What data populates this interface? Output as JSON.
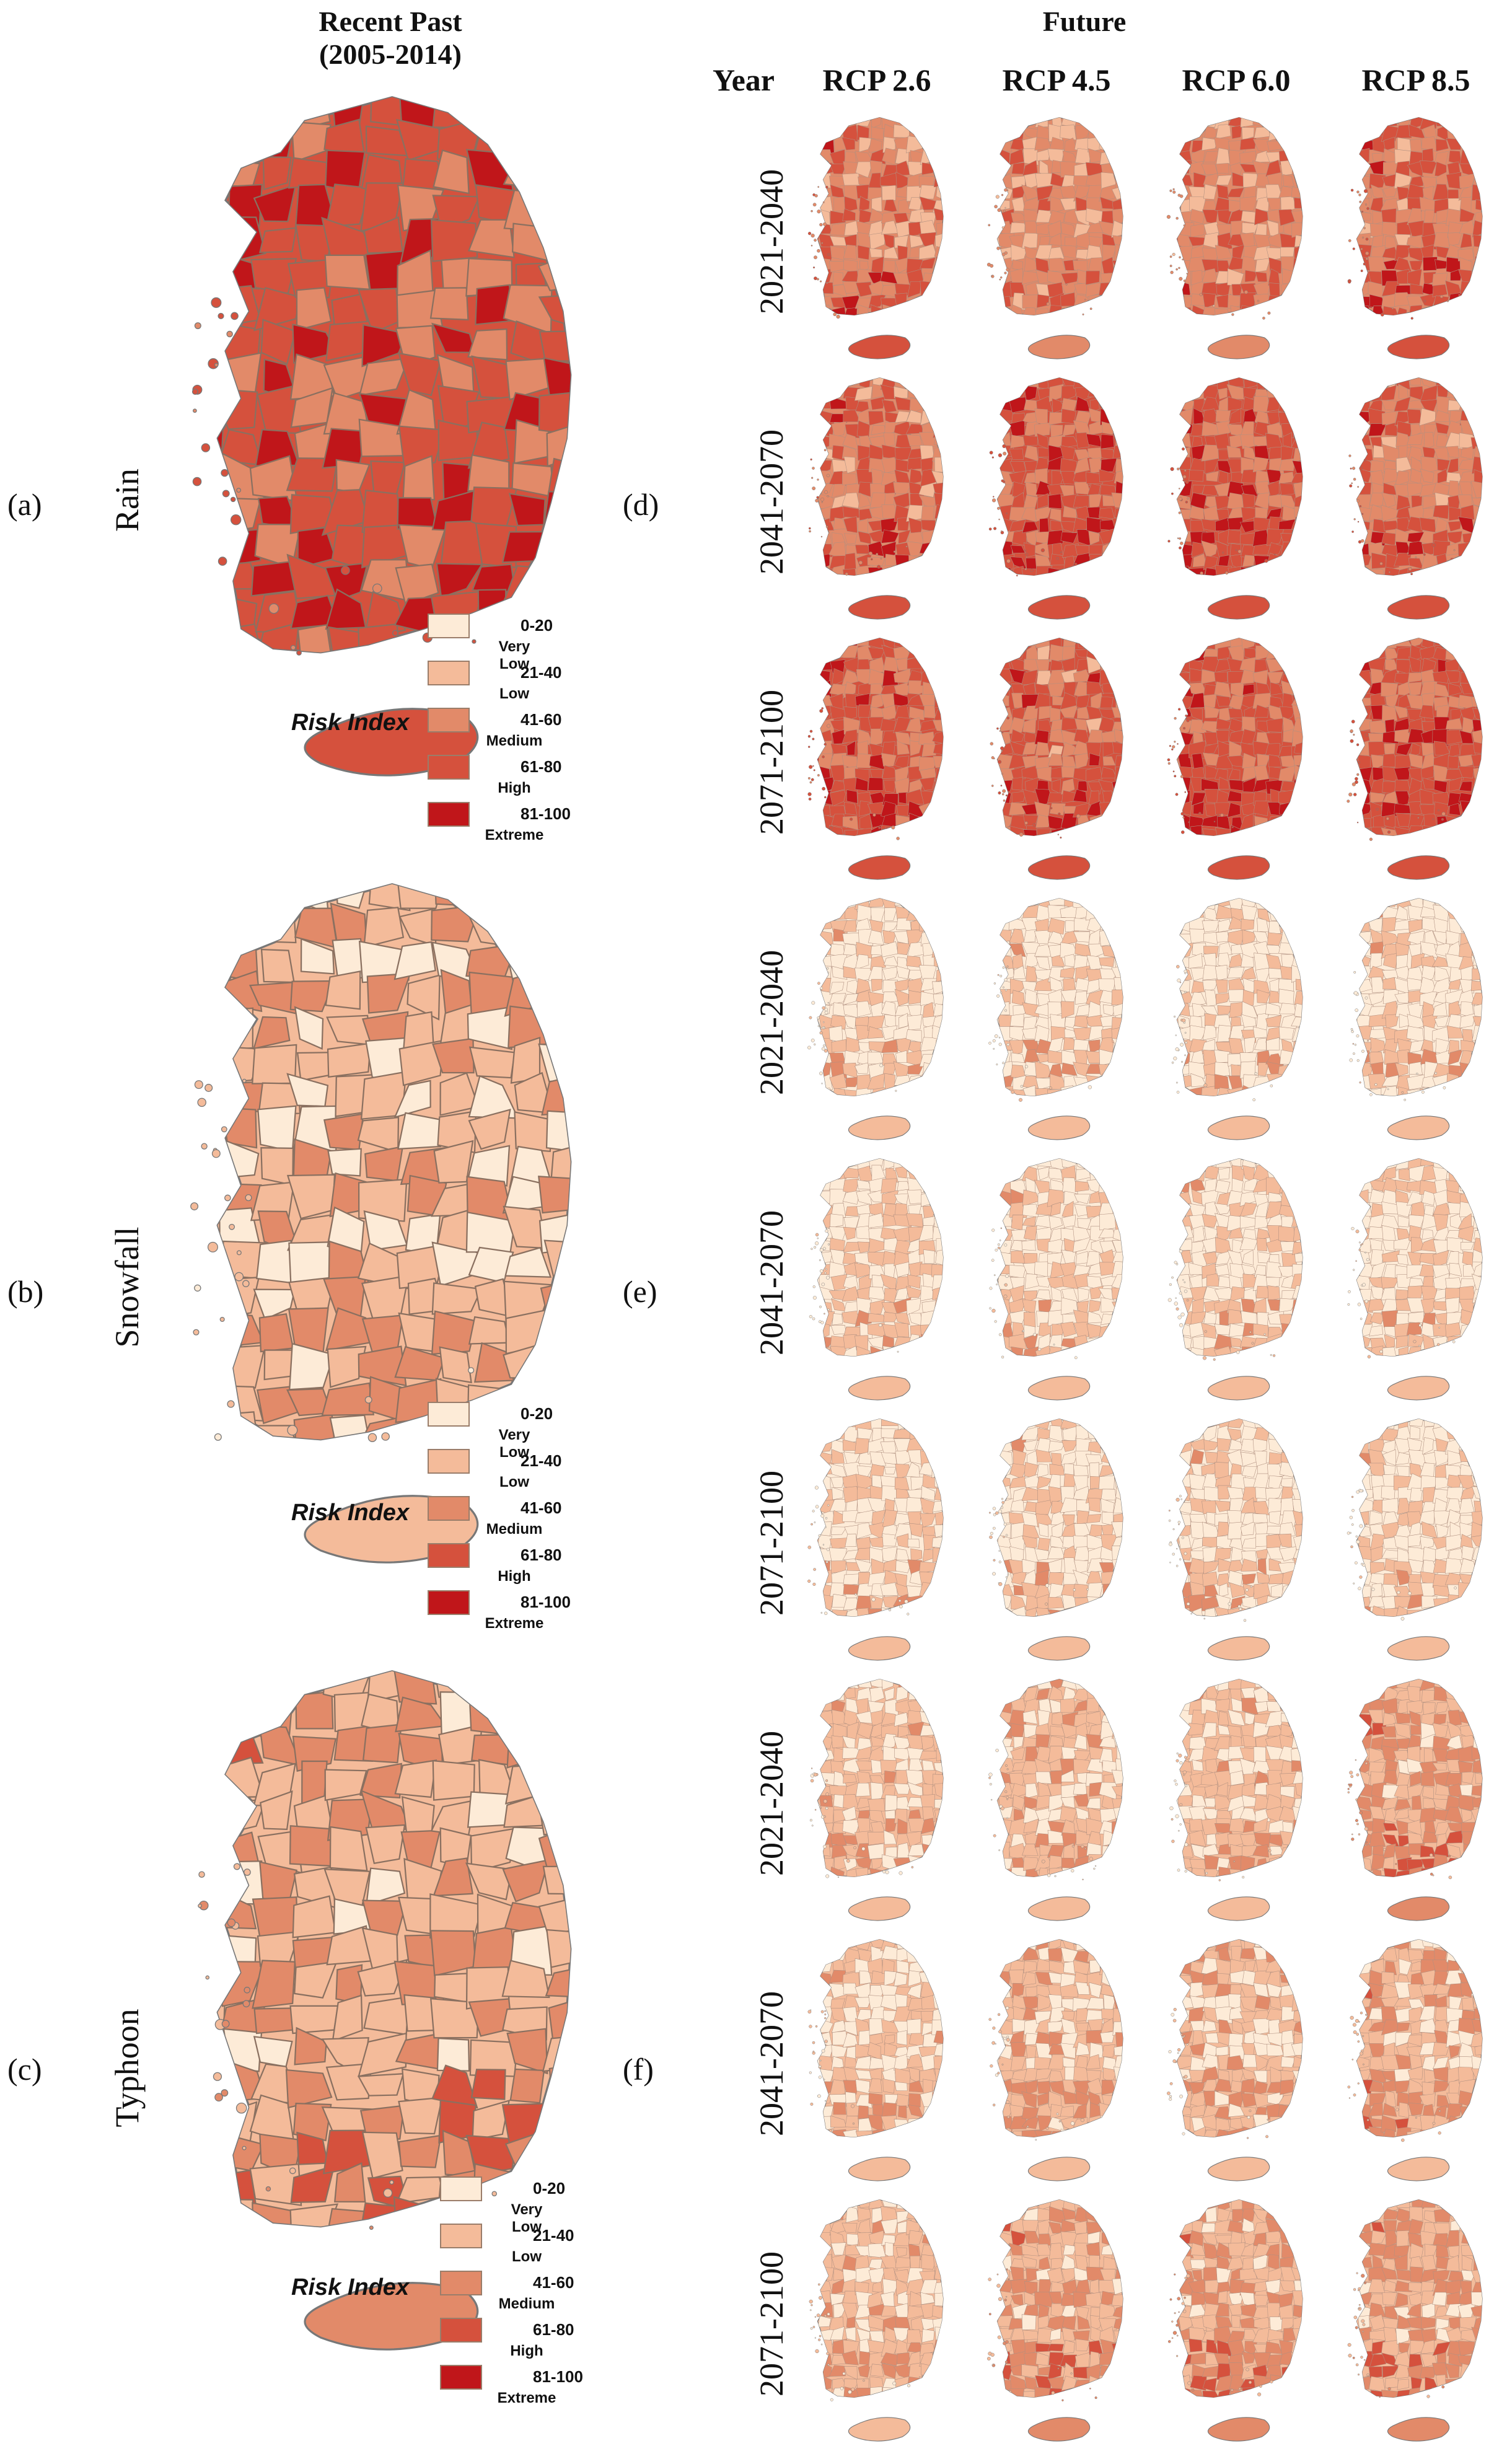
{
  "header": {
    "recent_past_line1": "Recent Past",
    "recent_past_line2": "(2005-2014)",
    "future": "Future",
    "year": "Year",
    "scenarios": [
      "RCP 2.6",
      "RCP 4.5",
      "RCP 6.0",
      "RCP 8.5"
    ]
  },
  "panels": [
    {
      "letter": "(a)",
      "hazard": "Rain",
      "recent_level": 2.6
    },
    {
      "letter": "(b)",
      "hazard": "Snowfall",
      "recent_level": 0.9
    },
    {
      "letter": "(c)",
      "hazard": "Typhoon",
      "recent_level": 1.4
    }
  ],
  "future_panels": [
    {
      "letter": "(d)",
      "periods": [
        "2021-2040",
        "2041-2070",
        "2071-2100"
      ],
      "levels": [
        [
          2.2,
          1.7,
          1.9,
          2.4
        ],
        [
          2.3,
          2.6,
          2.6,
          2.4
        ],
        [
          2.6,
          2.5,
          2.6,
          2.7
        ]
      ]
    },
    {
      "letter": "(e)",
      "periods": [
        "2021-2040",
        "2041-2070",
        "2071-2100"
      ],
      "levels": [
        [
          0.2,
          0.2,
          0.2,
          0.2
        ],
        [
          0.2,
          0.2,
          0.2,
          0.2
        ],
        [
          0.2,
          0.2,
          0.2,
          0.2
        ]
      ]
    },
    {
      "letter": "(f)",
      "periods": [
        "2021-2040",
        "2041-2070",
        "2071-2100"
      ],
      "levels": [
        [
          0.6,
          0.5,
          0.5,
          1.4
        ],
        [
          0.5,
          0.8,
          0.7,
          1.0
        ],
        [
          0.7,
          1.3,
          1.4,
          1.2
        ]
      ]
    }
  ],
  "legend": {
    "title": "Risk Index",
    "items": [
      {
        "range": "0-20",
        "label": "Very Low",
        "color": "#fdebd7"
      },
      {
        "range": "21-40",
        "label": "Low",
        "color": "#f4bb9a"
      },
      {
        "range": "41-60",
        "label": "Medium",
        "color": "#e28a69"
      },
      {
        "range": "61-80",
        "label": "High",
        "color": "#d5513d"
      },
      {
        "range": "81-100",
        "label": "Extreme",
        "color": "#c0161a"
      }
    ]
  }
}
